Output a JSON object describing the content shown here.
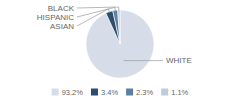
{
  "chart_data": {
    "type": "pie",
    "categories": [
      "WHITE",
      "ASIAN",
      "HISPANIC",
      "BLACK"
    ],
    "values": [
      93.2,
      3.4,
      2.3,
      1.1
    ],
    "value_labels": [
      "93.2%",
      "3.4%",
      "2.3%",
      "1.1%"
    ],
    "colors": [
      "#d6dde8",
      "#2e4d6b",
      "#5b7fa6",
      "#c0ccd8"
    ],
    "legend": "bottom"
  }
}
